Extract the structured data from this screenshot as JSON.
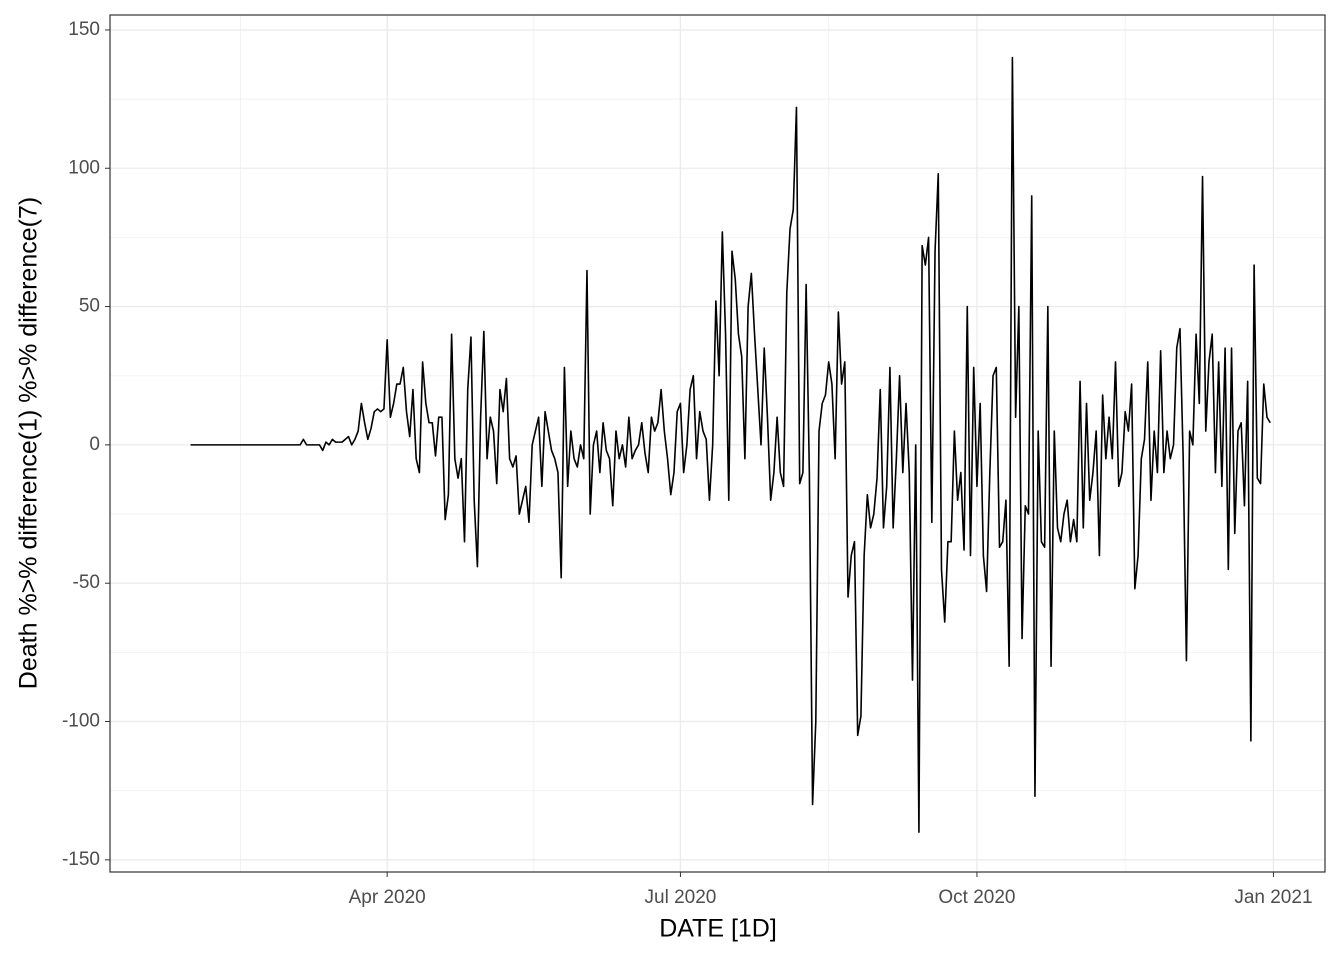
{
  "chart_data": {
    "type": "line",
    "x_label": "DATE [1D]",
    "y_label": "Death %>% difference(1) %>% difference(7)",
    "xlim": [
      "2020-01-06",
      "2021-01-17"
    ],
    "xticks": [
      {
        "value": "2020-04-01",
        "label": "Apr 2020"
      },
      {
        "value": "2020-07-01",
        "label": "Jul 2020"
      },
      {
        "value": "2020-10-01",
        "label": "Oct 2020"
      },
      {
        "value": "2021-01-01",
        "label": "Jan 2021"
      }
    ],
    "ylim": [
      -154.4,
      155.4
    ],
    "yticks": [
      -150,
      -100,
      -50,
      0,
      50,
      100,
      150
    ],
    "grid": true,
    "series": [
      {
        "color": "#000000",
        "x": [
          "2020-01-31",
          "2020-02-01",
          "2020-02-02",
          "2020-02-03",
          "2020-02-04",
          "2020-02-05",
          "2020-02-06",
          "2020-02-07",
          "2020-02-08",
          "2020-02-09",
          "2020-02-10",
          "2020-02-11",
          "2020-02-12",
          "2020-02-13",
          "2020-02-14",
          "2020-02-15",
          "2020-02-16",
          "2020-02-17",
          "2020-02-18",
          "2020-02-19",
          "2020-02-20",
          "2020-02-21",
          "2020-02-22",
          "2020-02-23",
          "2020-02-24",
          "2020-02-25",
          "2020-02-26",
          "2020-02-27",
          "2020-02-28",
          "2020-02-29",
          "2020-03-01",
          "2020-03-02",
          "2020-03-03",
          "2020-03-04",
          "2020-03-05",
          "2020-03-06",
          "2020-03-07",
          "2020-03-08",
          "2020-03-09",
          "2020-03-10",
          "2020-03-11",
          "2020-03-12",
          "2020-03-13",
          "2020-03-14",
          "2020-03-15",
          "2020-03-16",
          "2020-03-17",
          "2020-03-18",
          "2020-03-19",
          "2020-03-20",
          "2020-03-21",
          "2020-03-22",
          "2020-03-23",
          "2020-03-24",
          "2020-03-25",
          "2020-03-26",
          "2020-03-27",
          "2020-03-28",
          "2020-03-29",
          "2020-03-30",
          "2020-03-31",
          "2020-04-01",
          "2020-04-02",
          "2020-04-03",
          "2020-04-04",
          "2020-04-05",
          "2020-04-06",
          "2020-04-07",
          "2020-04-08",
          "2020-04-09",
          "2020-04-10",
          "2020-04-11",
          "2020-04-12",
          "2020-04-13",
          "2020-04-14",
          "2020-04-15",
          "2020-04-16",
          "2020-04-17",
          "2020-04-18",
          "2020-04-19",
          "2020-04-20",
          "2020-04-21",
          "2020-04-22",
          "2020-04-23",
          "2020-04-24",
          "2020-04-25",
          "2020-04-26",
          "2020-04-27",
          "2020-04-28",
          "2020-04-29",
          "2020-04-30",
          "2020-05-01",
          "2020-05-02",
          "2020-05-03",
          "2020-05-04",
          "2020-05-05",
          "2020-05-06",
          "2020-05-07",
          "2020-05-08",
          "2020-05-09",
          "2020-05-10",
          "2020-05-11",
          "2020-05-12",
          "2020-05-13",
          "2020-05-14",
          "2020-05-15",
          "2020-05-16",
          "2020-05-17",
          "2020-05-18",
          "2020-05-19",
          "2020-05-20",
          "2020-05-21",
          "2020-05-22",
          "2020-05-23",
          "2020-05-24",
          "2020-05-25",
          "2020-05-26",
          "2020-05-27",
          "2020-05-28",
          "2020-05-29",
          "2020-05-30",
          "2020-05-31",
          "2020-06-01",
          "2020-06-02",
          "2020-06-03",
          "2020-06-04",
          "2020-06-05",
          "2020-06-06",
          "2020-06-07",
          "2020-06-08",
          "2020-06-09",
          "2020-06-10",
          "2020-06-11",
          "2020-06-12",
          "2020-06-13",
          "2020-06-14",
          "2020-06-15",
          "2020-06-16",
          "2020-06-17",
          "2020-06-18",
          "2020-06-19",
          "2020-06-20",
          "2020-06-21",
          "2020-06-22",
          "2020-06-23",
          "2020-06-24",
          "2020-06-25",
          "2020-06-26",
          "2020-06-27",
          "2020-06-28",
          "2020-06-29",
          "2020-06-30",
          "2020-07-01",
          "2020-07-02",
          "2020-07-03",
          "2020-07-04",
          "2020-07-05",
          "2020-07-06",
          "2020-07-07",
          "2020-07-08",
          "2020-07-09",
          "2020-07-10",
          "2020-07-11",
          "2020-07-12",
          "2020-07-13",
          "2020-07-14",
          "2020-07-15",
          "2020-07-16",
          "2020-07-17",
          "2020-07-18",
          "2020-07-19",
          "2020-07-20",
          "2020-07-21",
          "2020-07-22",
          "2020-07-23",
          "2020-07-24",
          "2020-07-25",
          "2020-07-26",
          "2020-07-27",
          "2020-07-28",
          "2020-07-29",
          "2020-07-30",
          "2020-07-31",
          "2020-08-01",
          "2020-08-02",
          "2020-08-03",
          "2020-08-04",
          "2020-08-05",
          "2020-08-06",
          "2020-08-07",
          "2020-08-08",
          "2020-08-09",
          "2020-08-10",
          "2020-08-11",
          "2020-08-12",
          "2020-08-13",
          "2020-08-14",
          "2020-08-15",
          "2020-08-16",
          "2020-08-17",
          "2020-08-18",
          "2020-08-19",
          "2020-08-20",
          "2020-08-21",
          "2020-08-22",
          "2020-08-23",
          "2020-08-24",
          "2020-08-25",
          "2020-08-26",
          "2020-08-27",
          "2020-08-28",
          "2020-08-29",
          "2020-08-30",
          "2020-08-31",
          "2020-09-01",
          "2020-09-02",
          "2020-09-03",
          "2020-09-04",
          "2020-09-05",
          "2020-09-06",
          "2020-09-07",
          "2020-09-08",
          "2020-09-09",
          "2020-09-10",
          "2020-09-11",
          "2020-09-12",
          "2020-09-13",
          "2020-09-14",
          "2020-09-15",
          "2020-09-16",
          "2020-09-17",
          "2020-09-18",
          "2020-09-19",
          "2020-09-20",
          "2020-09-21",
          "2020-09-22",
          "2020-09-23",
          "2020-09-24",
          "2020-09-25",
          "2020-09-26",
          "2020-09-27",
          "2020-09-28",
          "2020-09-29",
          "2020-09-30",
          "2020-10-01",
          "2020-10-02",
          "2020-10-03",
          "2020-10-04",
          "2020-10-05",
          "2020-10-06",
          "2020-10-07",
          "2020-10-08",
          "2020-10-09",
          "2020-10-10",
          "2020-10-11",
          "2020-10-12",
          "2020-10-13",
          "2020-10-14",
          "2020-10-15",
          "2020-10-16",
          "2020-10-17",
          "2020-10-18",
          "2020-10-19",
          "2020-10-20",
          "2020-10-21",
          "2020-10-22",
          "2020-10-23",
          "2020-10-24",
          "2020-10-25",
          "2020-10-26",
          "2020-10-27",
          "2020-10-28",
          "2020-10-29",
          "2020-10-30",
          "2020-10-31",
          "2020-11-01",
          "2020-11-02",
          "2020-11-03",
          "2020-11-04",
          "2020-11-05",
          "2020-11-06",
          "2020-11-07",
          "2020-11-08",
          "2020-11-09",
          "2020-11-10",
          "2020-11-11",
          "2020-11-12",
          "2020-11-13",
          "2020-11-14",
          "2020-11-15",
          "2020-11-16",
          "2020-11-17",
          "2020-11-18",
          "2020-11-19",
          "2020-11-20",
          "2020-11-21",
          "2020-11-22",
          "2020-11-23",
          "2020-11-24",
          "2020-11-25",
          "2020-11-26",
          "2020-11-27",
          "2020-11-28",
          "2020-11-29",
          "2020-11-30",
          "2020-12-01",
          "2020-12-02",
          "2020-12-03",
          "2020-12-04",
          "2020-12-05",
          "2020-12-06",
          "2020-12-07",
          "2020-12-08",
          "2020-12-09",
          "2020-12-10",
          "2020-12-11",
          "2020-12-12",
          "2020-12-13",
          "2020-12-14",
          "2020-12-15",
          "2020-12-16",
          "2020-12-17",
          "2020-12-18",
          "2020-12-19",
          "2020-12-20",
          "2020-12-21",
          "2020-12-22",
          "2020-12-23",
          "2020-12-24",
          "2020-12-25",
          "2020-12-26",
          "2020-12-27",
          "2020-12-28",
          "2020-12-29",
          "2020-12-30",
          "2020-12-31"
        ],
        "values": [
          0,
          0,
          0,
          0,
          0,
          0,
          0,
          0,
          0,
          0,
          0,
          0,
          0,
          0,
          0,
          0,
          0,
          0,
          0,
          0,
          0,
          0,
          0,
          0,
          0,
          0,
          0,
          0,
          0,
          0,
          0,
          0,
          0,
          0,
          0,
          2,
          0,
          0,
          0,
          0,
          0,
          -2,
          1,
          0,
          2,
          1,
          1,
          1,
          2,
          3,
          0,
          2,
          5,
          15,
          8,
          2,
          6,
          12,
          13,
          12,
          13,
          38,
          10,
          15,
          22,
          22,
          28,
          12,
          3,
          20,
          -5,
          -10,
          30,
          15,
          8,
          8,
          -4,
          10,
          10,
          -27,
          -18,
          40,
          -5,
          -12,
          -5,
          -35,
          20,
          39,
          -20,
          -44,
          10,
          41,
          -5,
          10,
          5,
          -14,
          20,
          12,
          24,
          -5,
          -8,
          -4,
          -25,
          -20,
          -15,
          -28,
          0,
          5,
          10,
          -15,
          12,
          5,
          -2,
          -5,
          -10,
          -48,
          28,
          -15,
          5,
          -5,
          -8,
          0,
          -5,
          63,
          -25,
          0,
          5,
          -10,
          8,
          -2,
          -5,
          -22,
          5,
          -5,
          0,
          -8,
          10,
          -5,
          -2,
          0,
          8,
          -3,
          -10,
          10,
          5,
          8,
          20,
          5,
          -5,
          -18,
          -10,
          12,
          15,
          -10,
          0,
          20,
          25,
          -5,
          12,
          5,
          2,
          -20,
          0,
          52,
          25,
          77,
          40,
          -20,
          70,
          60,
          40,
          32,
          -5,
          50,
          62,
          40,
          20,
          0,
          35,
          10,
          -20,
          -10,
          10,
          -10,
          -15,
          55,
          78,
          85,
          122,
          -14,
          -10,
          58,
          -10,
          -130,
          -100,
          5,
          15,
          18,
          30,
          22,
          -5,
          48,
          22,
          30,
          -55,
          -40,
          -35,
          -105,
          -98,
          -40,
          -18,
          -30,
          -25,
          -12,
          20,
          -30,
          -15,
          28,
          -30,
          -5,
          25,
          -10,
          15,
          -10,
          -85,
          0,
          -140,
          72,
          65,
          75,
          -28,
          70,
          98,
          -45,
          -64,
          -35,
          -35,
          5,
          -20,
          -10,
          -38,
          50,
          -40,
          28,
          -15,
          15,
          -40,
          -53,
          -10,
          25,
          28,
          -37,
          -35,
          -20,
          -80,
          140,
          10,
          50,
          -70,
          -22,
          -25,
          90,
          -127,
          5,
          -35,
          -37,
          50,
          -80,
          5,
          -30,
          -35,
          -25,
          -20,
          -35,
          -27,
          -35,
          23,
          -30,
          15,
          -20,
          -10,
          5,
          -40,
          18,
          -5,
          10,
          -5,
          30,
          -15,
          -10,
          12,
          5,
          22,
          -52,
          -40,
          -5,
          2,
          30,
          -20,
          5,
          -10,
          34,
          -10,
          5,
          -5,
          0,
          35,
          42,
          -5,
          -78,
          5,
          0,
          40,
          15,
          97,
          5,
          30,
          40,
          -10,
          30,
          -15,
          35,
          -45,
          35,
          -32,
          5,
          8,
          -22,
          23,
          -107,
          65,
          -12,
          -14,
          22,
          10,
          8
        ]
      }
    ]
  }
}
